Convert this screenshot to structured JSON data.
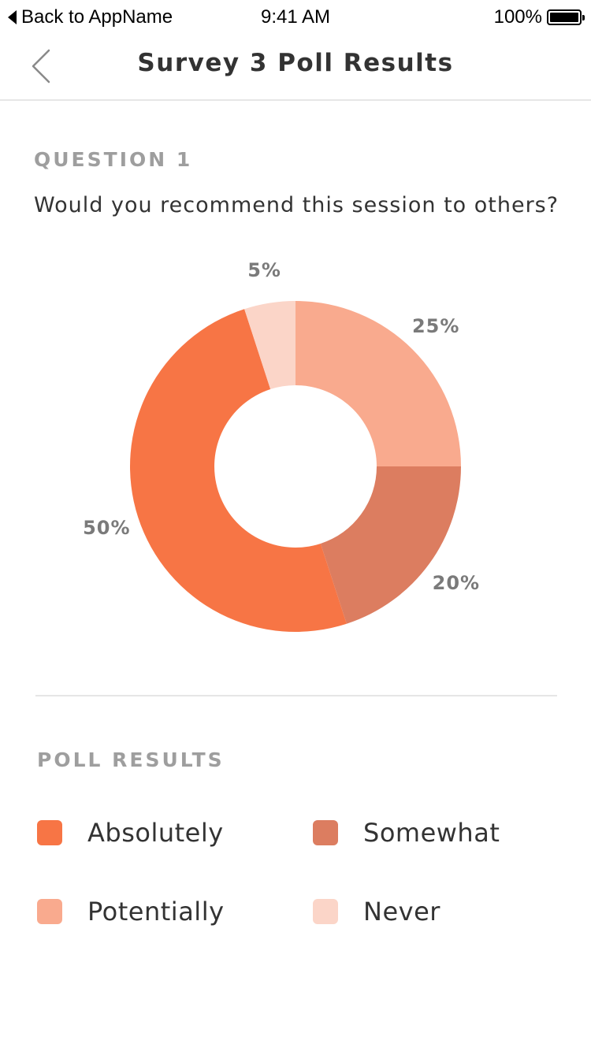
{
  "status_bar": {
    "back_label": "Back to AppName",
    "time": "9:41 AM",
    "battery": "100%"
  },
  "nav": {
    "title": "Survey 3 Poll Results",
    "back_icon": "chevron-left-icon"
  },
  "question": {
    "label": "QUESTION 1",
    "text": "Would you recommend this session to others?"
  },
  "chart_data": {
    "type": "pie",
    "categories": [
      "Potentially",
      "Somewhat",
      "Absolutely",
      "Never"
    ],
    "values": [
      25,
      20,
      50,
      5
    ],
    "labels": [
      "25%",
      "20%",
      "50%",
      "5%"
    ],
    "colors": [
      "#f9aa8e",
      "#dc7d60",
      "#f77545",
      "#fbd5c8"
    ]
  },
  "legend": {
    "title": "POLL RESULTS",
    "items": [
      {
        "label": "Absolutely",
        "color": "#f77545"
      },
      {
        "label": "Somewhat",
        "color": "#dc7d60"
      },
      {
        "label": "Potentially",
        "color": "#f9aa8e"
      },
      {
        "label": "Never",
        "color": "#fbd5c8"
      }
    ]
  }
}
